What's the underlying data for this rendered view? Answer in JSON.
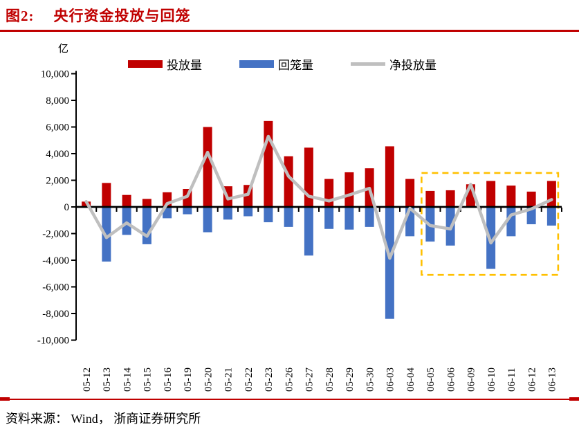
{
  "figure": {
    "label": "图2:",
    "title": "央行资金投放与回笼",
    "unit_label": "亿",
    "source": "资料来源： Wind， 浙商证券研究所"
  },
  "colors": {
    "accent_red": "#c00000",
    "bar_injection": "#c00000",
    "bar_withdrawal": "#4472c4",
    "line_net": "#bfbfbf",
    "highlight_box": "#ffc000",
    "axis": "#000000"
  },
  "legend": [
    {
      "key": "injection",
      "label": "投放量",
      "swatch": "bar",
      "color": "#c00000"
    },
    {
      "key": "withdrawal",
      "label": "回笼量",
      "swatch": "bar",
      "color": "#4472c4"
    },
    {
      "key": "net",
      "label": "净投放量",
      "swatch": "line",
      "color": "#bfbfbf"
    }
  ],
  "chart_data": {
    "type": "bar",
    "subtype": "bars-with-line",
    "title": "央行资金投放与回笼",
    "ylabel": "亿",
    "ylim": [
      -10000,
      10000
    ],
    "ytick_step": 2000,
    "grid": false,
    "legend_position": "top",
    "categories": [
      "05-12",
      "05-13",
      "05-14",
      "05-15",
      "05-16",
      "05-19",
      "05-20",
      "05-21",
      "05-22",
      "05-23",
      "05-26",
      "05-27",
      "05-28",
      "05-29",
      "05-30",
      "06-03",
      "06-04",
      "06-05",
      "06-06",
      "06-09",
      "06-10",
      "06-11",
      "06-12",
      "06-13"
    ],
    "series": [
      {
        "name": "投放量",
        "type": "bar",
        "color": "#c00000",
        "values": [
          400,
          1800,
          900,
          600,
          1100,
          1350,
          6000,
          1550,
          1650,
          6450,
          3800,
          4450,
          2100,
          2600,
          2900,
          4550,
          2100,
          1200,
          1250,
          1700,
          1950,
          1600,
          1150,
          1950
        ]
      },
      {
        "name": "回笼量",
        "type": "bar",
        "color": "#4472c4",
        "values": [
          0,
          -4100,
          -2100,
          -2800,
          -850,
          -550,
          -1900,
          -950,
          -700,
          -1150,
          -1500,
          -3650,
          -1650,
          -1700,
          -1500,
          -8400,
          -2200,
          -2600,
          -2900,
          0,
          -4650,
          -2200,
          -1300,
          -1400
        ]
      },
      {
        "name": "净投放量",
        "type": "line",
        "color": "#bfbfbf",
        "values": [
          400,
          -2300,
          -1200,
          -2200,
          250,
          800,
          4100,
          600,
          950,
          5300,
          2300,
          800,
          450,
          900,
          1400,
          -3850,
          -100,
          -1400,
          -1650,
          1700,
          -2700,
          -600,
          -150,
          550
        ]
      }
    ],
    "highlight_box": {
      "from_category": "06-05",
      "to_category": "06-13",
      "value_top": 2550,
      "value_bottom": -5100,
      "color": "#ffc000",
      "style": "dashed"
    }
  }
}
